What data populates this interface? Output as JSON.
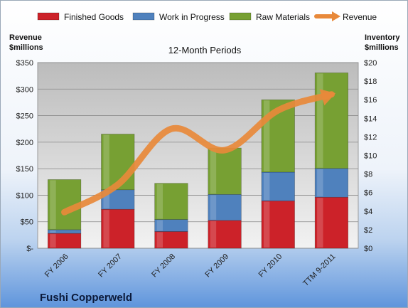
{
  "chart_data": {
    "type": "bar",
    "title": "",
    "subtitle": "12-Month Periods",
    "brand": "Fushi Copperweld",
    "categories": [
      "FY 2006",
      "FY 2007",
      "FY 2008",
      "FY 2009",
      "FY 2010",
      "TTM 9-2011"
    ],
    "stacked": true,
    "left_axis": {
      "label_line1": "Revenue",
      "label_line2": "$millions",
      "ylim": [
        0,
        350
      ],
      "ticks": [
        "$-",
        "$50",
        "$100",
        "$150",
        "$200",
        "$250",
        "$300",
        "$350"
      ]
    },
    "right_axis": {
      "label_line1": "Inventory",
      "label_line2": "$millions",
      "ylim": [
        0,
        20
      ],
      "ticks": [
        "$0",
        "$2",
        "$4",
        "$6",
        "$8",
        "$10",
        "$12",
        "$14",
        "$16",
        "$18",
        "$20"
      ]
    },
    "series": [
      {
        "name": "Finished Goods",
        "axis": "right",
        "color": "#cc2229",
        "values": [
          1.6,
          4.2,
          1.8,
          3.0,
          5.1,
          5.5
        ]
      },
      {
        "name": "Work in Progress",
        "axis": "right",
        "color": "#4f81bd",
        "values": [
          0.4,
          2.1,
          1.3,
          2.8,
          3.1,
          3.1
        ]
      },
      {
        "name": "Raw Materials",
        "axis": "right",
        "color": "#77a033",
        "values": [
          5.4,
          6.0,
          3.9,
          5.0,
          7.8,
          10.3
        ]
      }
    ],
    "line_series": {
      "name": "Revenue",
      "axis": "left",
      "color": "#e8893a",
      "values": [
        68,
        120,
        225,
        185,
        260,
        290
      ]
    },
    "grid": true,
    "legend_position": "top"
  }
}
